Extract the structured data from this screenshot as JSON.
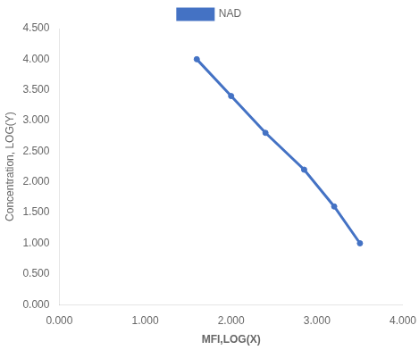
{
  "chart_data": {
    "type": "line",
    "x": [
      1.6,
      2.0,
      2.4,
      2.85,
      3.2,
      3.5
    ],
    "series": [
      {
        "name": "NAD",
        "color": "#4472C4",
        "marker": "circle",
        "values": [
          4.0,
          3.4,
          2.8,
          2.2,
          1.6,
          1.0
        ]
      }
    ],
    "xlabel": "MFI,LOG(X)",
    "ylabel": "Concentration, LOG(Y)",
    "xlim": [
      0.0,
      4.0
    ],
    "ylim": [
      0.0,
      4.5
    ],
    "xticks": [
      {
        "value": 0.0,
        "label": "0.000"
      },
      {
        "value": 1.0,
        "label": "1.000"
      },
      {
        "value": 2.0,
        "label": "2.000"
      },
      {
        "value": 3.0,
        "label": "3.000"
      },
      {
        "value": 4.0,
        "label": "4.000"
      }
    ],
    "yticks": [
      {
        "value": 0.0,
        "label": "0.000"
      },
      {
        "value": 0.5,
        "label": "0.500"
      },
      {
        "value": 1.0,
        "label": "1.000"
      },
      {
        "value": 1.5,
        "label": "1.500"
      },
      {
        "value": 2.0,
        "label": "2.000"
      },
      {
        "value": 2.5,
        "label": "2.500"
      },
      {
        "value": 3.0,
        "label": "3.000"
      },
      {
        "value": 3.5,
        "label": "3.500"
      },
      {
        "value": 4.0,
        "label": "4.000"
      },
      {
        "value": 4.5,
        "label": "4.500"
      }
    ],
    "grid": false,
    "legend": "top"
  }
}
